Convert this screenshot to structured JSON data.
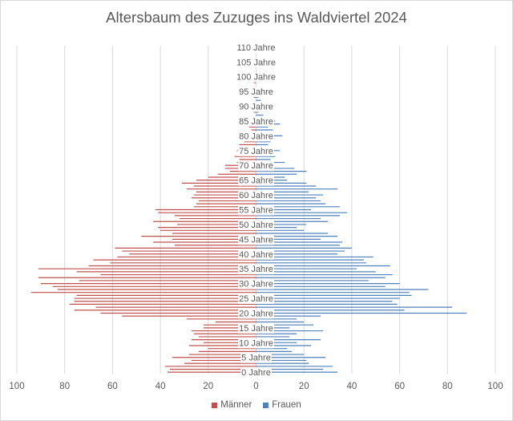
{
  "chart_data": {
    "type": "bar",
    "orientation": "horizontal",
    "title": "Altersbaum des Zuzuges ins Waldviertel 2024",
    "xlim": [
      -100,
      100
    ],
    "x_ticks": [
      -100,
      -80,
      -60,
      -40,
      -20,
      0,
      20,
      40,
      60,
      80,
      100
    ],
    "x_tick_labels": [
      "100",
      "80",
      "60",
      "40",
      "20",
      "0",
      "20",
      "40",
      "60",
      "80",
      "100"
    ],
    "grid": "vertical",
    "legend_position": "bottom",
    "categories": [
      "0 Jahre",
      "1",
      "2",
      "3",
      "4",
      "5 Jahre",
      "6",
      "7",
      "8",
      "9",
      "10 Jahre",
      "11",
      "12",
      "13",
      "14",
      "15 Jahre",
      "16",
      "17",
      "18",
      "19",
      "20 Jahre",
      "21",
      "22",
      "23",
      "24",
      "25 Jahre",
      "26",
      "27",
      "28",
      "29",
      "30 Jahre",
      "31",
      "32",
      "33",
      "34",
      "35 Jahre",
      "36",
      "37",
      "38",
      "39",
      "40 Jahre",
      "41",
      "42",
      "43",
      "44",
      "45 Jahre",
      "46",
      "47",
      "48",
      "49",
      "50 Jahre",
      "51",
      "52",
      "53",
      "54",
      "55 Jahre",
      "56",
      "57",
      "58",
      "59",
      "60 Jahre",
      "61",
      "62",
      "63",
      "64",
      "65 Jahre",
      "66",
      "67",
      "68",
      "69",
      "70 Jahre",
      "71",
      "72",
      "73",
      "74",
      "75 Jahre",
      "76",
      "77",
      "78",
      "79",
      "80 Jahre",
      "81",
      "82",
      "83",
      "84",
      "85 Jahre",
      "86",
      "87",
      "88",
      "89",
      "90 Jahre",
      "91",
      "92",
      "93",
      "94",
      "95 Jahre",
      "96",
      "97",
      "98",
      "99",
      "100 Jahre",
      "101",
      "102",
      "103",
      "104",
      "105 Jahre",
      "106",
      "107",
      "108",
      "109",
      "110 Jahre"
    ],
    "category_labels_shown": [
      "0 Jahre",
      "5 Jahre",
      "10 Jahre",
      "15 Jahre",
      "20 Jahre",
      "25 Jahre",
      "30 Jahre",
      "35 Jahre",
      "40 Jahre",
      "45 Jahre",
      "50 Jahre",
      "55 Jahre",
      "60 Jahre",
      "65 Jahre",
      "70 Jahre",
      "75 Jahre",
      "80 Jahre",
      "85 Jahre",
      "90 Jahre",
      "95 Jahre",
      "100 Jahre",
      "105 Jahre",
      "110 Jahre"
    ],
    "series": [
      {
        "name": "Männer",
        "color": "#c0504d",
        "values": [
          37,
          36,
          38,
          30,
          27,
          35,
          28,
          24,
          20,
          28,
          22,
          27,
          24,
          26,
          27,
          22,
          22,
          17,
          29,
          56,
          65,
          76,
          67,
          78,
          76,
          76,
          75,
          94,
          83,
          85,
          90,
          74,
          91,
          65,
          75,
          91,
          70,
          61,
          68,
          58,
          53,
          56,
          59,
          34,
          43,
          35,
          48,
          35,
          40,
          41,
          33,
          43,
          32,
          34,
          41,
          42,
          26,
          25,
          24,
          27,
          26,
          25,
          29,
          26,
          31,
          25,
          20,
          16,
          11,
          13,
          13,
          8,
          7,
          9,
          7,
          8,
          5,
          7,
          5,
          5,
          2,
          3,
          2,
          3,
          3,
          2,
          0,
          0,
          1,
          1,
          1,
          0,
          0,
          1,
          0,
          2,
          0,
          0,
          1,
          0,
          0,
          0,
          0,
          0,
          0,
          0,
          0,
          0,
          0,
          0,
          0
        ],
        "values_note": "plotted to the left of 0"
      },
      {
        "name": "Frauen",
        "color": "#4f81bd",
        "values": [
          34,
          28,
          32,
          22,
          21,
          29,
          20,
          15,
          13,
          23,
          17,
          27,
          14,
          17,
          28,
          14,
          24,
          20,
          17,
          27,
          88,
          62,
          82,
          59,
          57,
          60,
          65,
          64,
          72,
          54,
          60,
          47,
          54,
          57,
          50,
          42,
          56,
          46,
          45,
          49,
          34,
          37,
          40,
          35,
          36,
          27,
          34,
          30,
          20,
          17,
          21,
          30,
          27,
          35,
          38,
          23,
          35,
          29,
          27,
          25,
          28,
          22,
          34,
          25,
          21,
          13,
          12,
          17,
          21,
          16,
          6,
          12,
          6,
          8,
          7,
          10,
          5,
          5,
          6,
          7,
          11,
          7,
          7,
          5,
          10,
          8,
          6,
          3,
          1,
          1,
          3,
          4,
          2,
          1,
          1,
          2,
          1,
          0,
          0,
          1,
          1,
          0,
          0,
          0,
          0,
          0,
          0,
          0,
          0,
          0,
          0
        ]
      }
    ]
  }
}
